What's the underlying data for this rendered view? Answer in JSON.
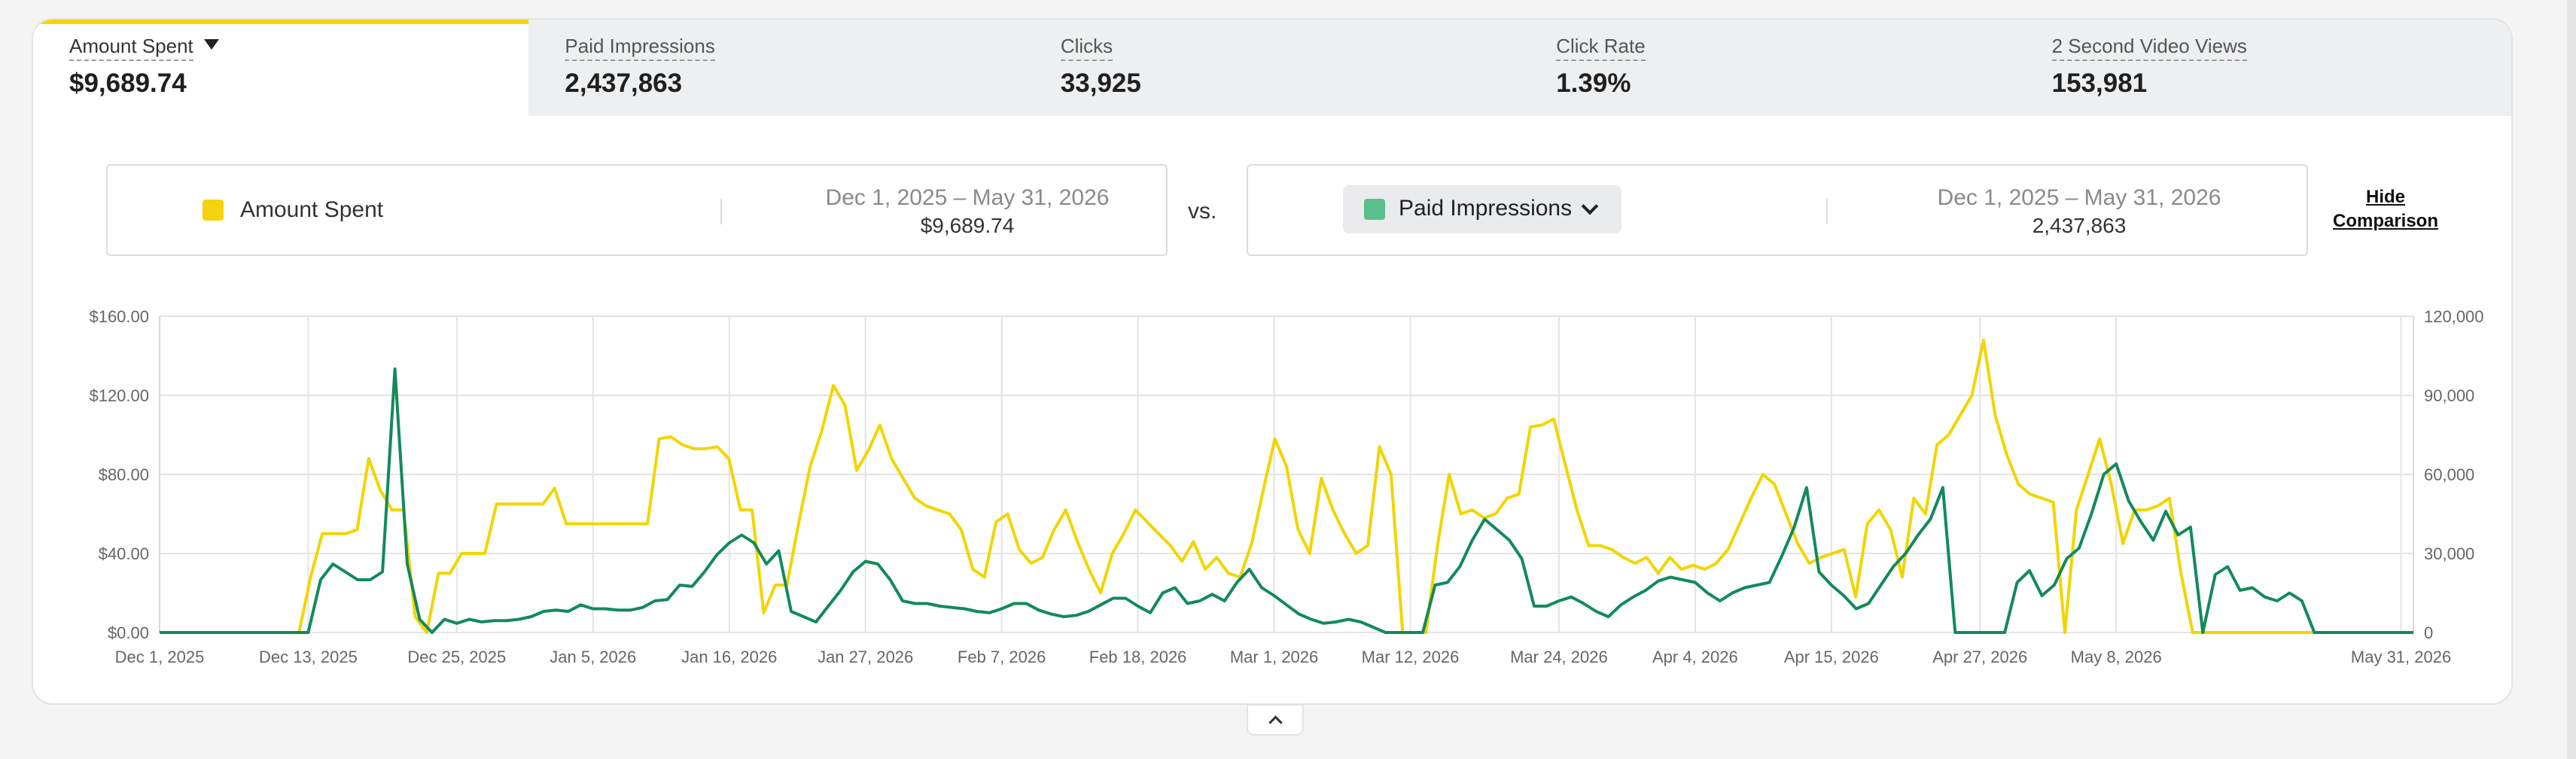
{
  "tabs": [
    {
      "label": "Amount Spent",
      "value": "$9,689.74"
    },
    {
      "label": "Paid Impressions",
      "value": "2,437,863"
    },
    {
      "label": "Clicks",
      "value": "33,925"
    },
    {
      "label": "Click Rate",
      "value": "1.39%"
    },
    {
      "label": "2 Second Video Views",
      "value": "153,981"
    }
  ],
  "comparison": {
    "primary": {
      "metric": "Amount Spent",
      "range": "Dec 1, 2025 – May 31, 2026",
      "total": "$9,689.74",
      "color": "#f5d30f"
    },
    "vs_label": "vs.",
    "secondary": {
      "metric": "Paid Impressions",
      "range": "Dec 1, 2025 – May 31, 2026",
      "total": "2,437,863",
      "color": "#5bbf8e"
    },
    "hide_label_line1": "Hide",
    "hide_label_line2": "Comparison"
  },
  "chart_data": {
    "type": "line",
    "x_tick_labels": [
      "Dec 1, 2025",
      "Dec 13, 2025",
      "Dec 25, 2025",
      "Jan 5, 2026",
      "Jan 16, 2026",
      "Jan 27, 2026",
      "Feb 7, 2026",
      "Feb 18, 2026",
      "Mar 1, 2026",
      "Mar 12, 2026",
      "Mar 24, 2026",
      "Apr 4, 2026",
      "Apr 15, 2026",
      "Apr 27, 2026",
      "May 8, 2026",
      "May 31, 2026"
    ],
    "x_tick_days": [
      0,
      12,
      24,
      35,
      46,
      57,
      68,
      79,
      90,
      101,
      113,
      124,
      135,
      147,
      158,
      181
    ],
    "y_left": {
      "ticks": [
        "$0.00",
        "$40.00",
        "$80.00",
        "$120.00",
        "$160.00"
      ],
      "min": 0,
      "max": 160
    },
    "y_right": {
      "ticks": [
        "0",
        "30,000",
        "60,000",
        "90,000",
        "120,000"
      ],
      "min": 0,
      "max": 120000
    },
    "grid": true,
    "series": [
      {
        "name": "Amount Spent",
        "axis": "left",
        "color": "#f2d500",
        "values": [
          0,
          0,
          0,
          0,
          0,
          0,
          0,
          0,
          0,
          0,
          0,
          0,
          0,
          28,
          50,
          50,
          50,
          52,
          88,
          72,
          62,
          62,
          8,
          0,
          30,
          30,
          40,
          40,
          40,
          65,
          65,
          65,
          65,
          65,
          73,
          55,
          55,
          55,
          55,
          55,
          55,
          55,
          55,
          98,
          99,
          95,
          93,
          93,
          94,
          88,
          62,
          62,
          10,
          24,
          24,
          55,
          84,
          102,
          125,
          115,
          82,
          92,
          105,
          88,
          78,
          68,
          64,
          62,
          60,
          52,
          32,
          28,
          56,
          60,
          42,
          35,
          38,
          52,
          62,
          46,
          32,
          20,
          40,
          50,
          62,
          56,
          50,
          44,
          36,
          46,
          32,
          38,
          30,
          28,
          45,
          72,
          98,
          84,
          52,
          40,
          78,
          62,
          50,
          40,
          44,
          94,
          80,
          0,
          0,
          0,
          44,
          80,
          60,
          62,
          58,
          60,
          68,
          70,
          104,
          105,
          108,
          85,
          62,
          44,
          44,
          42,
          38,
          35,
          38,
          30,
          38,
          32,
          34,
          32,
          35,
          42,
          55,
          68,
          80,
          75,
          60,
          45,
          35,
          38,
          40,
          42,
          18,
          55,
          62,
          52,
          28,
          68,
          60,
          95,
          100,
          110,
          120,
          148,
          110,
          90,
          75,
          70,
          68,
          66,
          0,
          62,
          80,
          98,
          75,
          45,
          62,
          62,
          64,
          68,
          30,
          0,
          0,
          0,
          0,
          0,
          0,
          0,
          0,
          0,
          0,
          0,
          0,
          0,
          0,
          0,
          0,
          0,
          0,
          0,
          0
        ]
      },
      {
        "name": "Paid Impressions",
        "axis": "right",
        "color": "#138a5b",
        "values": [
          0,
          0,
          0,
          0,
          0,
          0,
          0,
          0,
          0,
          0,
          0,
          0,
          0,
          20000,
          26000,
          23000,
          20000,
          20000,
          23000,
          100000,
          26000,
          5000,
          0,
          5000,
          3500,
          5000,
          4000,
          4500,
          4500,
          5000,
          6000,
          8000,
          8500,
          8000,
          10500,
          9000,
          9000,
          8500,
          8500,
          9500,
          12000,
          12500,
          18000,
          17500,
          23000,
          29500,
          34000,
          37000,
          34000,
          26000,
          31000,
          8000,
          6000,
          4000,
          10000,
          16000,
          23000,
          27000,
          26000,
          20000,
          12000,
          11000,
          11000,
          10000,
          9500,
          9000,
          8000,
          7500,
          9000,
          11000,
          11000,
          8500,
          7000,
          6000,
          6500,
          8000,
          10500,
          13000,
          13000,
          10000,
          7500,
          15000,
          17000,
          11000,
          12000,
          14500,
          12000,
          19000,
          24000,
          17000,
          14000,
          10500,
          7000,
          5000,
          3500,
          4000,
          5000,
          4000,
          2000,
          0,
          0,
          0,
          0,
          18000,
          19000,
          25000,
          35000,
          43000,
          39000,
          35000,
          28000,
          10000,
          10000,
          12000,
          13500,
          11000,
          8000,
          6000,
          10500,
          13500,
          16000,
          19500,
          21000,
          20000,
          19000,
          15000,
          12000,
          15000,
          17000,
          18000,
          19000,
          29000,
          40000,
          55000,
          23000,
          18000,
          14000,
          9000,
          11000,
          18000,
          25000,
          30000,
          37000,
          43000,
          55000,
          0,
          0,
          0,
          0,
          0,
          19000,
          23500,
          14000,
          18000,
          28000,
          32000,
          45000,
          60000,
          64000,
          50000,
          42000,
          35000,
          46000,
          37000,
          40000,
          0,
          22000,
          25000,
          16000,
          17000,
          13500,
          12000,
          15000,
          12000,
          0,
          0,
          0,
          0,
          0,
          0,
          0,
          0,
          0
        ]
      }
    ]
  }
}
